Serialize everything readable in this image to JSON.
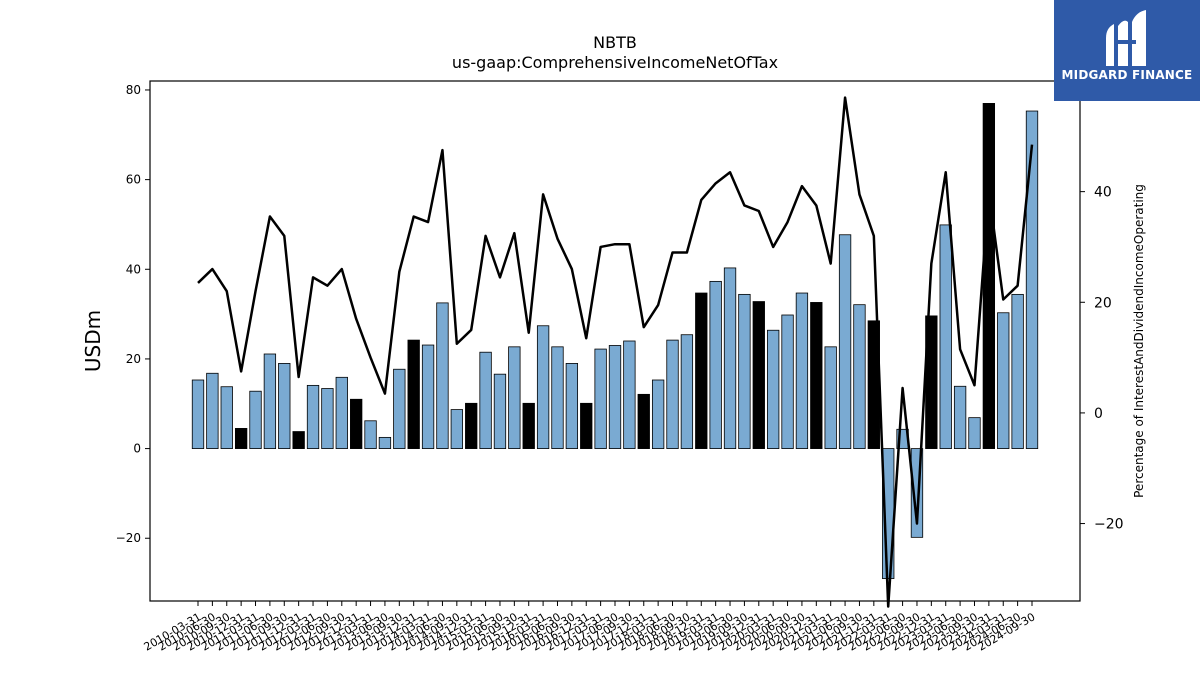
{
  "chart_data": {
    "type": "bar",
    "title": "NBTB",
    "subtitle": "us-gaap:ComprehensiveIncomeNetOfTax",
    "ylabel": "USDm",
    "y2label": "Percentage of InterestAndDividendIncomeOperating",
    "ylim": [
      -34,
      82
    ],
    "y2lim": [
      -34,
      60
    ],
    "yticks": [
      -20,
      0,
      20,
      40,
      60,
      80
    ],
    "y2ticks": [
      -20,
      0,
      20,
      40
    ],
    "categories": [
      "2010-03-31",
      "2010-06-30",
      "2010-09-30",
      "2010-12-31",
      "2011-03-31",
      "2011-06-30",
      "2011-09-30",
      "2011-12-31",
      "2012-03-31",
      "2012-06-30",
      "2012-09-30",
      "2012-12-31",
      "2013-03-31",
      "2013-06-30",
      "2013-09-30",
      "2013-12-31",
      "2014-03-31",
      "2014-06-30",
      "2014-09-30",
      "2014-12-31",
      "2015-03-31",
      "2015-06-30",
      "2015-09-30",
      "2015-12-31",
      "2016-03-31",
      "2016-06-30",
      "2016-09-30",
      "2016-12-31",
      "2017-03-31",
      "2017-06-30",
      "2017-09-30",
      "2017-12-31",
      "2018-03-31",
      "2018-06-30",
      "2018-09-30",
      "2018-12-31",
      "2019-03-31",
      "2019-06-30",
      "2019-09-30",
      "2019-12-31",
      "2020-03-31",
      "2020-06-30",
      "2020-09-30",
      "2020-12-31",
      "2021-03-31",
      "2021-06-30",
      "2021-09-30",
      "2021-12-31",
      "2022-03-31",
      "2022-06-30",
      "2022-09-30",
      "2022-12-31",
      "2023-03-31",
      "2023-06-30",
      "2023-09-30",
      "2023-12-31",
      "2024-03-31",
      "2024-06-30",
      "2024-09-30"
    ],
    "x_tick_labels": [
      "2010-03-31",
      "2010-06-30",
      "2010-09-30",
      "2010-12-31",
      "2011-03-31",
      "2011-06-30",
      "2011-09-30",
      "2011-12-31",
      "2012-03-31",
      "2012-06-30",
      "2012-09-30",
      "2012-12-31",
      "2013-03-31",
      "2013-06-30",
      "2013-09-30",
      "2013-12-31",
      "2014-03-31",
      "2014-06-30",
      "2014-09-30",
      "2014-12-31",
      "2015-03-31",
      "2015-06-30",
      "2015-09-30",
      "2015-12-31",
      "2016-03-31",
      "2016-06-30",
      "2016-09-30",
      "2016-12-31",
      "2017-03-31",
      "2017-06-30",
      "2017-09-30",
      "2017-12-31",
      "2018-03-31",
      "2018-06-30",
      "2018-09-30",
      "2018-12-31",
      "2019-03-31",
      "2019-06-30",
      "2019-09-30",
      "2019-12-31",
      "2020-03-31",
      "2020-06-30",
      "2020-09-30",
      "2020-12-31",
      "2021-03-31",
      "2021-06-30",
      "2021-09-30",
      "2021-12-31",
      "2022-03-31",
      "2022-06-30",
      "2022-09-30",
      "2022-12-31",
      "2023-03-31",
      "2023-06-30",
      "2023-09-30",
      "2023-12-31",
      "2024-03-31",
      "2024-06-30",
      "2024-09-30"
    ],
    "series": [
      {
        "axis": "left",
        "kind": "bar",
        "values": [
          15.3,
          16.8,
          13.8,
          4.5,
          12.8,
          21.1,
          19.0,
          3.8,
          14.1,
          13.4,
          15.9,
          11.0,
          6.2,
          2.5,
          17.7,
          24.2,
          23.1,
          32.5,
          8.7,
          10.1,
          21.5,
          16.6,
          22.7,
          10.1,
          27.4,
          22.7,
          19.0,
          10.1,
          22.2,
          23.0,
          24.0,
          12.1,
          15.3,
          24.2,
          25.4,
          34.7,
          37.3,
          40.3,
          34.4,
          32.8,
          26.4,
          29.8,
          34.7,
          32.6,
          22.7,
          47.7,
          32.1,
          28.5,
          -29.0,
          4.3,
          -19.8,
          29.6,
          49.9,
          13.9,
          6.9,
          77.0,
          30.3,
          34.4,
          75.3
        ],
        "colors": [
          "#7aaad2",
          "#7aaad2",
          "#7aaad2",
          "#000000",
          "#7aaad2",
          "#7aaad2",
          "#7aaad2",
          "#000000",
          "#7aaad2",
          "#7aaad2",
          "#7aaad2",
          "#000000",
          "#7aaad2",
          "#7aaad2",
          "#7aaad2",
          "#000000",
          "#7aaad2",
          "#7aaad2",
          "#7aaad2",
          "#000000",
          "#7aaad2",
          "#7aaad2",
          "#7aaad2",
          "#000000",
          "#7aaad2",
          "#7aaad2",
          "#7aaad2",
          "#000000",
          "#7aaad2",
          "#7aaad2",
          "#7aaad2",
          "#000000",
          "#7aaad2",
          "#7aaad2",
          "#7aaad2",
          "#000000",
          "#7aaad2",
          "#7aaad2",
          "#7aaad2",
          "#000000",
          "#7aaad2",
          "#7aaad2",
          "#7aaad2",
          "#000000",
          "#7aaad2",
          "#7aaad2",
          "#7aaad2",
          "#000000",
          "#7aaad2",
          "#7aaad2",
          "#7aaad2",
          "#000000",
          "#7aaad2",
          "#7aaad2",
          "#7aaad2",
          "#000000",
          "#7aaad2",
          "#7aaad2",
          "#7aaad2"
        ]
      },
      {
        "axis": "right",
        "kind": "line",
        "color": "#000000",
        "values": [
          23.5,
          26.0,
          22.0,
          7.5,
          22.0,
          35.5,
          32.0,
          6.5,
          24.5,
          23.0,
          26.0,
          17.0,
          10.0,
          3.5,
          25.5,
          35.5,
          34.5,
          47.5,
          12.5,
          15.0,
          32.0,
          24.5,
          32.5,
          14.5,
          39.5,
          31.5,
          26.0,
          13.5,
          30.0,
          30.5,
          30.5,
          15.5,
          19.5,
          29.0,
          29.0,
          38.5,
          41.5,
          43.5,
          37.5,
          36.5,
          30.0,
          34.5,
          41.0,
          37.5,
          27.0,
          57.0,
          39.5,
          32.0,
          -35.0,
          4.5,
          -20.0,
          27.0,
          43.5,
          11.5,
          5.0,
          40.0,
          20.5,
          23.0,
          48.5
        ]
      }
    ],
    "grid": false,
    "legend": "none"
  },
  "branding": {
    "name": "MIDGARD FINANCE",
    "background_color": "#2f5aa8"
  }
}
